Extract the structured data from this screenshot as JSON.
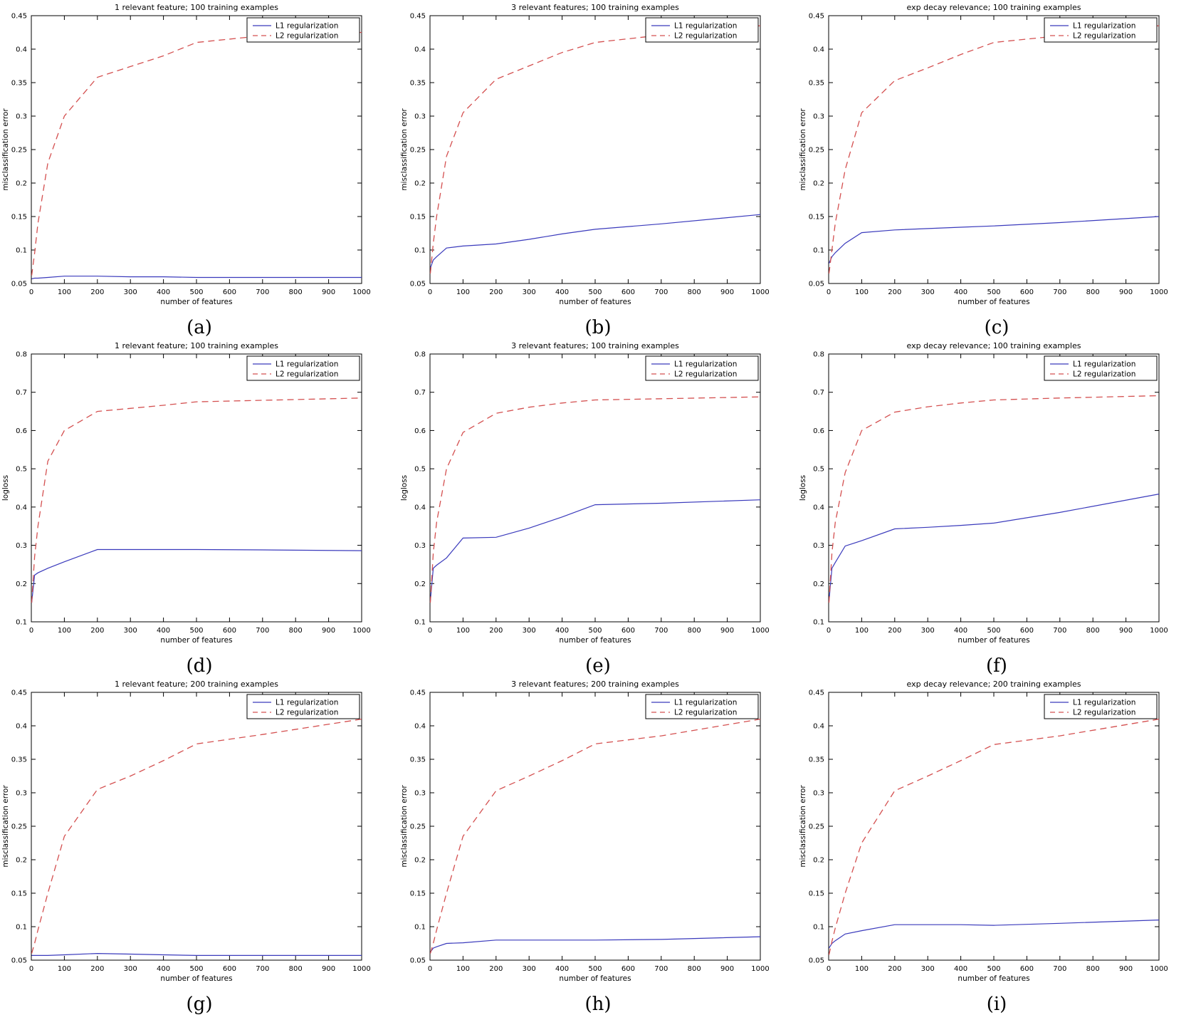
{
  "page": {
    "background": "#ffffff"
  },
  "colors": {
    "l1_line": "#3a3abc",
    "l2_line": "#d45050",
    "axis": "#000000",
    "legend_border": "#000000"
  },
  "legend": {
    "position": "top-right",
    "items": [
      {
        "label": "L1 regularization",
        "style": "solid",
        "color": "#3a3abc"
      },
      {
        "label": "L2 regularization",
        "style": "dashed",
        "color": "#d45050"
      }
    ]
  },
  "chart_data": [
    {
      "type": "line",
      "label": "(a)",
      "title": "1 relevant feature; 100 training examples",
      "xlabel": "number of features",
      "ylabel": "misclassification error",
      "xlim": [
        0,
        1000
      ],
      "ylim": [
        0.05,
        0.45
      ],
      "xticks": [
        0,
        100,
        200,
        300,
        400,
        500,
        600,
        700,
        800,
        900,
        1000
      ],
      "yticks": [
        "0.05",
        "0.1",
        "0.15",
        "0.2",
        "0.25",
        "0.3",
        "0.35",
        "0.4",
        "0.45"
      ],
      "grid": false,
      "legend_position": "top-right",
      "x": [
        1,
        10,
        20,
        50,
        100,
        200,
        300,
        400,
        500,
        700,
        1000
      ],
      "series": [
        {
          "name": "L1 regularization",
          "style": "solid",
          "color": "#3a3abc",
          "y": [
            0.057,
            0.058,
            0.058,
            0.059,
            0.061,
            0.061,
            0.06,
            0.06,
            0.059,
            0.059,
            0.059
          ]
        },
        {
          "name": "L2 regularization",
          "style": "dashed",
          "color": "#d45050",
          "y": [
            0.062,
            0.095,
            0.14,
            0.23,
            0.3,
            0.358,
            0.374,
            0.39,
            0.41,
            0.42,
            0.425
          ]
        }
      ]
    },
    {
      "type": "line",
      "label": "(b)",
      "title": "3 relevant features; 100 training examples",
      "xlabel": "number of features",
      "ylabel": "misclassification error",
      "xlim": [
        0,
        1000
      ],
      "ylim": [
        0.05,
        0.45
      ],
      "xticks": [
        0,
        100,
        200,
        300,
        400,
        500,
        600,
        700,
        800,
        900,
        1000
      ],
      "yticks": [
        "0.05",
        "0.1",
        "0.15",
        "0.2",
        "0.25",
        "0.3",
        "0.35",
        "0.4",
        "0.45"
      ],
      "grid": false,
      "legend_position": "top-right",
      "x": [
        1,
        10,
        20,
        50,
        100,
        200,
        300,
        400,
        500,
        700,
        1000
      ],
      "series": [
        {
          "name": "L1 regularization",
          "style": "solid",
          "color": "#3a3abc",
          "y": [
            0.073,
            0.085,
            0.09,
            0.103,
            0.106,
            0.109,
            0.116,
            0.124,
            0.131,
            0.139,
            0.153
          ]
        },
        {
          "name": "L2 regularization",
          "style": "dashed",
          "color": "#d45050",
          "y": [
            0.065,
            0.11,
            0.15,
            0.24,
            0.305,
            0.355,
            0.375,
            0.395,
            0.41,
            0.421,
            0.435
          ]
        }
      ]
    },
    {
      "type": "line",
      "label": "(c)",
      "title": "exp decay relevance; 100 training examples",
      "xlabel": "number of features",
      "ylabel": "misclassification error",
      "xlim": [
        0,
        1000
      ],
      "ylim": [
        0.05,
        0.45
      ],
      "xticks": [
        0,
        100,
        200,
        300,
        400,
        500,
        600,
        700,
        800,
        900,
        1000
      ],
      "yticks": [
        "0.05",
        "0.1",
        "0.15",
        "0.2",
        "0.25",
        "0.3",
        "0.35",
        "0.4",
        "0.45"
      ],
      "grid": false,
      "legend_position": "top-right",
      "x": [
        1,
        10,
        20,
        50,
        100,
        200,
        300,
        400,
        500,
        700,
        1000
      ],
      "series": [
        {
          "name": "L1 regularization",
          "style": "solid",
          "color": "#3a3abc",
          "y": [
            0.08,
            0.09,
            0.096,
            0.11,
            0.126,
            0.13,
            0.132,
            0.134,
            0.136,
            0.141,
            0.15
          ]
        },
        {
          "name": "L2 regularization",
          "style": "dashed",
          "color": "#d45050",
          "y": [
            0.065,
            0.1,
            0.14,
            0.22,
            0.305,
            0.353,
            0.372,
            0.392,
            0.41,
            0.42,
            0.435
          ]
        }
      ]
    },
    {
      "type": "line",
      "label": "(d)",
      "title": "1 relevant feature; 100 training examples",
      "xlabel": "number of features",
      "ylabel": "logloss",
      "xlim": [
        0,
        1000
      ],
      "ylim": [
        0.1,
        0.8
      ],
      "xticks": [
        0,
        100,
        200,
        300,
        400,
        500,
        600,
        700,
        800,
        900,
        1000
      ],
      "yticks": [
        "0.1",
        "0.2",
        "0.3",
        "0.4",
        "0.5",
        "0.6",
        "0.7",
        "0.8"
      ],
      "grid": false,
      "legend_position": "top-right",
      "x": [
        1,
        10,
        20,
        50,
        100,
        200,
        300,
        400,
        500,
        700,
        1000
      ],
      "series": [
        {
          "name": "L1 regularization",
          "style": "solid",
          "color": "#3a3abc",
          "y": [
            0.15,
            0.222,
            0.228,
            0.24,
            0.257,
            0.289,
            0.289,
            0.289,
            0.289,
            0.288,
            0.286
          ]
        },
        {
          "name": "L2 regularization",
          "style": "dashed",
          "color": "#d45050",
          "y": [
            0.15,
            0.27,
            0.35,
            0.52,
            0.6,
            0.65,
            0.658,
            0.666,
            0.675,
            0.679,
            0.685
          ]
        }
      ]
    },
    {
      "type": "line",
      "label": "(e)",
      "title": "3 relevant features; 100 training examples",
      "xlabel": "number of features",
      "ylabel": "logloss",
      "xlim": [
        0,
        1000
      ],
      "ylim": [
        0.1,
        0.8
      ],
      "xticks": [
        0,
        100,
        200,
        300,
        400,
        500,
        600,
        700,
        800,
        900,
        1000
      ],
      "yticks": [
        "0.1",
        "0.2",
        "0.3",
        "0.4",
        "0.5",
        "0.6",
        "0.7",
        "0.8"
      ],
      "grid": false,
      "legend_position": "top-right",
      "x": [
        1,
        10,
        20,
        50,
        100,
        200,
        300,
        400,
        500,
        700,
        1000
      ],
      "series": [
        {
          "name": "L1 regularization",
          "style": "solid",
          "color": "#3a3abc",
          "y": [
            0.155,
            0.24,
            0.248,
            0.267,
            0.319,
            0.321,
            0.345,
            0.374,
            0.406,
            0.41,
            0.419
          ]
        },
        {
          "name": "L2 regularization",
          "style": "dashed",
          "color": "#d45050",
          "y": [
            0.15,
            0.28,
            0.36,
            0.5,
            0.595,
            0.645,
            0.661,
            0.672,
            0.68,
            0.683,
            0.688
          ]
        }
      ]
    },
    {
      "type": "line",
      "label": "(f)",
      "title": "exp decay relevance; 100 training examples",
      "xlabel": "number of features",
      "ylabel": "logloss",
      "xlim": [
        0,
        1000
      ],
      "ylim": [
        0.1,
        0.8
      ],
      "xticks": [
        0,
        100,
        200,
        300,
        400,
        500,
        600,
        700,
        800,
        900,
        1000
      ],
      "yticks": [
        "0.1",
        "0.2",
        "0.3",
        "0.4",
        "0.5",
        "0.6",
        "0.7",
        "0.8"
      ],
      "grid": false,
      "legend_position": "top-right",
      "x": [
        1,
        10,
        20,
        50,
        100,
        200,
        300,
        400,
        500,
        700,
        1000
      ],
      "series": [
        {
          "name": "L1 regularization",
          "style": "solid",
          "color": "#3a3abc",
          "y": [
            0.155,
            0.24,
            0.255,
            0.298,
            0.312,
            0.343,
            0.347,
            0.352,
            0.358,
            0.386,
            0.434
          ]
        },
        {
          "name": "L2 regularization",
          "style": "dashed",
          "color": "#d45050",
          "y": [
            0.15,
            0.28,
            0.36,
            0.49,
            0.6,
            0.648,
            0.662,
            0.672,
            0.68,
            0.685,
            0.691
          ]
        }
      ]
    },
    {
      "type": "line",
      "label": "(g)",
      "title": "1 relevant feature; 200 training examples",
      "xlabel": "number of features",
      "ylabel": "misclassification error",
      "xlim": [
        0,
        1000
      ],
      "ylim": [
        0.05,
        0.45
      ],
      "xticks": [
        0,
        100,
        200,
        300,
        400,
        500,
        600,
        700,
        800,
        900,
        1000
      ],
      "yticks": [
        "0.05",
        "0.1",
        "0.15",
        "0.2",
        "0.25",
        "0.3",
        "0.35",
        "0.4",
        "0.45"
      ],
      "grid": false,
      "legend_position": "top-right",
      "x": [
        1,
        10,
        20,
        50,
        100,
        200,
        300,
        400,
        500,
        700,
        1000
      ],
      "series": [
        {
          "name": "L1 regularization",
          "style": "solid",
          "color": "#3a3abc",
          "y": [
            0.057,
            0.057,
            0.057,
            0.057,
            0.058,
            0.06,
            0.059,
            0.058,
            0.057,
            0.057,
            0.057
          ]
        },
        {
          "name": "L2 regularization",
          "style": "dashed",
          "color": "#d45050",
          "y": [
            0.06,
            0.075,
            0.095,
            0.15,
            0.235,
            0.305,
            0.325,
            0.348,
            0.373,
            0.387,
            0.41
          ]
        }
      ]
    },
    {
      "type": "line",
      "label": "(h)",
      "title": "3 relevant features; 200 training examples",
      "xlabel": "number of features",
      "ylabel": "misclassification error",
      "xlim": [
        0,
        1000
      ],
      "ylim": [
        0.05,
        0.45
      ],
      "xticks": [
        0,
        100,
        200,
        300,
        400,
        500,
        600,
        700,
        800,
        900,
        1000
      ],
      "yticks": [
        "0.05",
        "0.1",
        "0.15",
        "0.2",
        "0.25",
        "0.3",
        "0.35",
        "0.4",
        "0.45"
      ],
      "grid": false,
      "legend_position": "top-right",
      "x": [
        1,
        10,
        20,
        50,
        100,
        200,
        300,
        400,
        500,
        700,
        1000
      ],
      "series": [
        {
          "name": "L1 regularization",
          "style": "solid",
          "color": "#3a3abc",
          "y": [
            0.062,
            0.068,
            0.07,
            0.075,
            0.076,
            0.08,
            0.08,
            0.08,
            0.08,
            0.081,
            0.085
          ]
        },
        {
          "name": "L2 regularization",
          "style": "dashed",
          "color": "#d45050",
          "y": [
            0.06,
            0.075,
            0.095,
            0.15,
            0.235,
            0.303,
            0.325,
            0.348,
            0.373,
            0.385,
            0.41
          ]
        }
      ]
    },
    {
      "type": "line",
      "label": "(i)",
      "title": "exp decay relevance; 200 training examples",
      "xlabel": "number of features",
      "ylabel": "misclassification error",
      "xlim": [
        0,
        1000
      ],
      "ylim": [
        0.05,
        0.45
      ],
      "xticks": [
        0,
        100,
        200,
        300,
        400,
        500,
        600,
        700,
        800,
        900,
        1000
      ],
      "yticks": [
        "0.05",
        "0.1",
        "0.15",
        "0.2",
        "0.25",
        "0.3",
        "0.35",
        "0.4",
        "0.45"
      ],
      "grid": false,
      "legend_position": "top-right",
      "x": [
        1,
        10,
        20,
        50,
        100,
        200,
        300,
        400,
        500,
        700,
        1000
      ],
      "series": [
        {
          "name": "L1 regularization",
          "style": "solid",
          "color": "#3a3abc",
          "y": [
            0.068,
            0.075,
            0.079,
            0.089,
            0.094,
            0.103,
            0.103,
            0.103,
            0.102,
            0.105,
            0.11
          ]
        },
        {
          "name": "L2 regularization",
          "style": "dashed",
          "color": "#d45050",
          "y": [
            0.058,
            0.078,
            0.098,
            0.15,
            0.225,
            0.303,
            0.325,
            0.348,
            0.372,
            0.385,
            0.41
          ]
        }
      ]
    }
  ]
}
